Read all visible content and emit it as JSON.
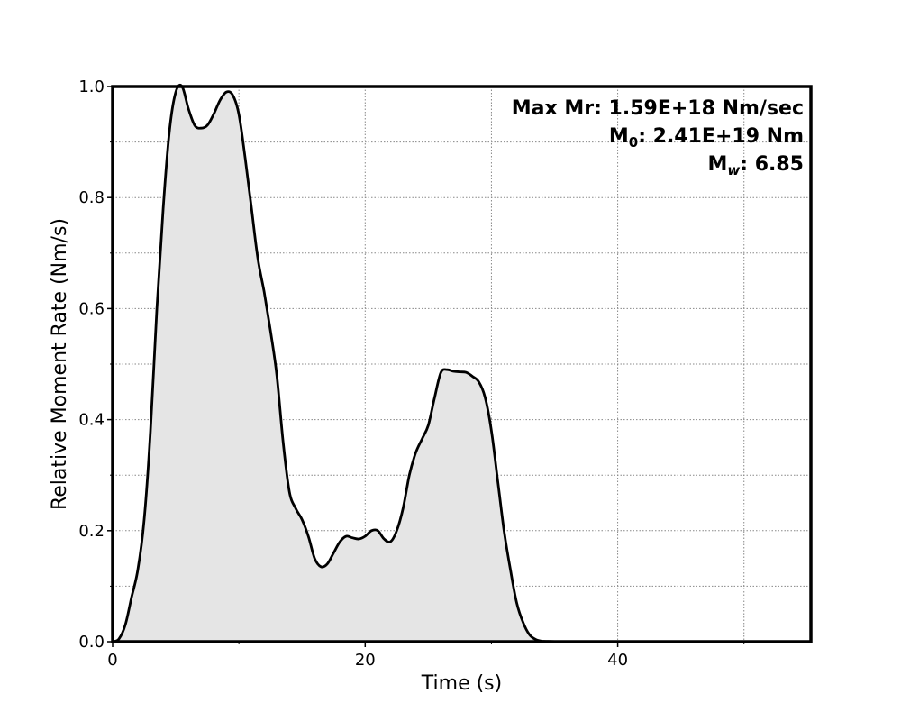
{
  "chart_data": {
    "type": "area",
    "title": "",
    "xlabel": "Time (s)",
    "ylabel": "Relative Moment Rate (Nm/s)",
    "xlim": [
      0,
      55.3
    ],
    "ylim": [
      0,
      1.0
    ],
    "xticks": [
      0,
      20,
      40
    ],
    "xticks_minor": [
      10,
      30,
      50
    ],
    "yticks": [
      0.0,
      0.2,
      0.4,
      0.6,
      0.8,
      1.0
    ],
    "yticks_minor": [
      0.1,
      0.3,
      0.5,
      0.7,
      0.9
    ],
    "xtick_labels": [
      "0",
      "20",
      "40"
    ],
    "ytick_labels": [
      "0.0",
      "0.2",
      "0.4",
      "0.6",
      "0.8",
      "1.0"
    ],
    "grid": true,
    "grid_style": "dotted",
    "fill_color": "#e5e5e5",
    "line_color": "#000000",
    "series": [
      {
        "x": [
          0,
          0.5,
          1.0,
          1.5,
          2.0,
          2.5,
          3.0,
          3.5,
          4.0,
          4.5,
          5.0,
          5.5,
          6.0,
          6.5,
          7.0,
          7.5,
          8.0,
          8.5,
          9.0,
          9.5,
          10.0,
          10.5,
          11.0,
          11.5,
          12.0,
          12.5,
          13.0,
          13.5,
          14.0,
          14.5,
          15.0,
          15.5,
          16.0,
          16.5,
          17.0,
          17.5,
          18.0,
          18.5,
          19.0,
          19.5,
          20.0,
          20.5,
          21.0,
          21.5,
          22.0,
          22.5,
          23.0,
          23.5,
          24.0,
          24.5,
          25.0,
          25.5,
          26.0,
          26.5,
          27.0,
          27.5,
          28.0,
          28.5,
          29.0,
          29.5,
          30.0,
          30.5,
          31.0,
          31.5,
          32.0,
          32.5,
          33.0,
          33.5,
          34.0,
          34.5,
          35.0,
          35.5,
          36.0,
          36.5,
          37.0,
          38.0,
          40.0,
          45.0,
          50.0,
          55.3
        ],
        "y": [
          0.0,
          0.005,
          0.03,
          0.08,
          0.13,
          0.22,
          0.38,
          0.6,
          0.78,
          0.92,
          0.99,
          1.0,
          0.96,
          0.93,
          0.925,
          0.93,
          0.95,
          0.975,
          0.99,
          0.985,
          0.95,
          0.87,
          0.78,
          0.69,
          0.63,
          0.56,
          0.48,
          0.36,
          0.27,
          0.24,
          0.22,
          0.19,
          0.15,
          0.135,
          0.14,
          0.16,
          0.18,
          0.19,
          0.187,
          0.185,
          0.19,
          0.2,
          0.2,
          0.185,
          0.18,
          0.2,
          0.24,
          0.3,
          0.34,
          0.365,
          0.39,
          0.44,
          0.485,
          0.49,
          0.487,
          0.486,
          0.485,
          0.478,
          0.468,
          0.44,
          0.38,
          0.29,
          0.2,
          0.13,
          0.07,
          0.035,
          0.013,
          0.004,
          0.001,
          0.0005,
          0.0002,
          0.0,
          0.0,
          0.0,
          0.0,
          0.0,
          0.0,
          0.0,
          0.0,
          0.0
        ]
      }
    ],
    "annotations": [
      {
        "text": "Max Mr: 1.59E+18 Nm/sec"
      },
      {
        "prefix": "M",
        "subscript": "0",
        "suffix": ": 2.41E+19 Nm"
      },
      {
        "prefix": "M",
        "subscript": "w",
        "suffix": ": 6.85"
      }
    ]
  }
}
